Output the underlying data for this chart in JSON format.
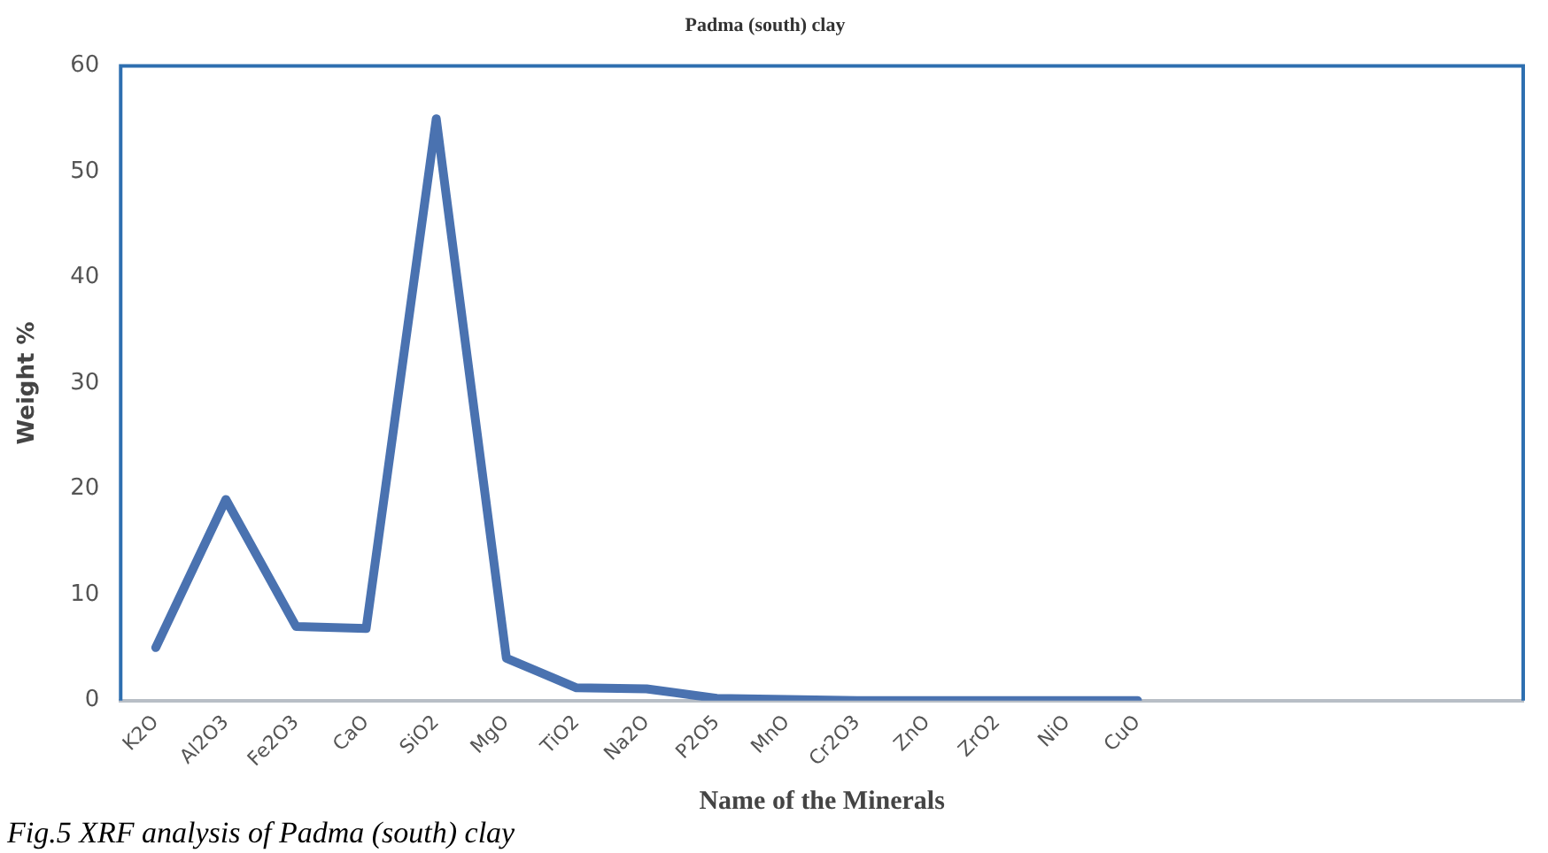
{
  "chart_data": {
    "type": "line",
    "title": "Padma (south) clay",
    "xlabel": "Name of the Minerals",
    "ylabel": "Weight %",
    "annotations": [
      "Fig.5 XRF analysis of Padma (south) clay"
    ],
    "categories": [
      "K2O",
      "Al2O3",
      "Fe2O3",
      "CaO",
      "SiO2",
      "MgO",
      "TiO2",
      "Na2O",
      "P2O5",
      "MnO",
      "Cr2O3",
      "ZnO",
      "ZrO2",
      "NiO",
      "CuO",
      null,
      null,
      null,
      null,
      null
    ],
    "series": [
      {
        "color": "#4a72b0",
        "values": [
          5,
          19,
          7,
          6.8,
          55,
          4,
          1.2,
          1.1,
          0.2,
          0.1,
          0,
          0,
          0,
          0,
          0,
          null,
          null,
          null,
          null,
          null
        ]
      }
    ],
    "ylim": [
      0,
      60
    ],
    "yticks": [
      0,
      10,
      20,
      30,
      40,
      50,
      60
    ],
    "grid": false,
    "legend": false,
    "marker": "none",
    "line_style": "solid"
  }
}
